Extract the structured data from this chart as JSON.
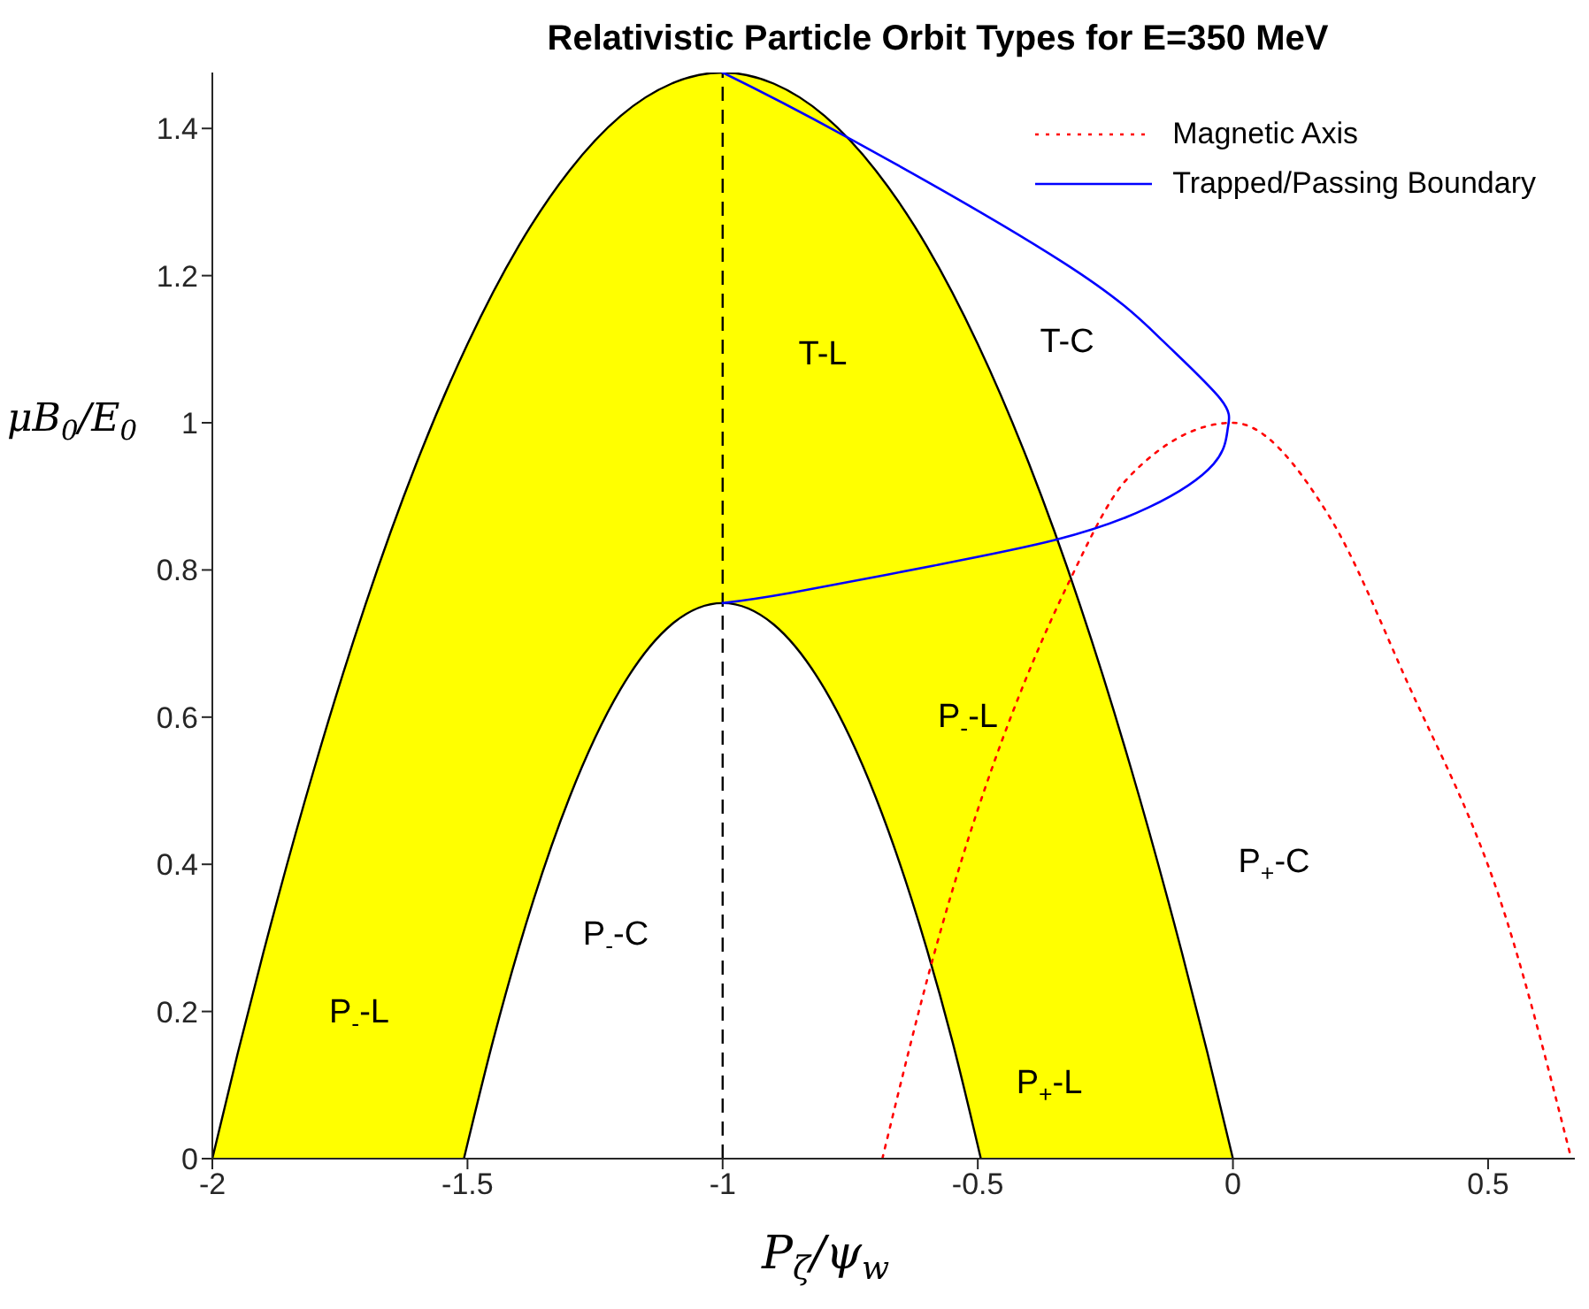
{
  "chart_data": {
    "type": "area",
    "title": "Relativistic Particle Orbit Types for E=350 MeV",
    "xlabel": "P$_{ζ}$/ψ$_{w}$",
    "ylabel": "μB$_{0}$/E$_{0}$",
    "xlim": [
      -2,
      0.67
    ],
    "xticks": [
      -2,
      -1.5,
      -1,
      -0.5,
      0,
      0.5
    ],
    "ylim": [
      0,
      1.476
    ],
    "yticks": [
      0,
      0.2,
      0.4,
      0.6,
      0.8,
      1,
      1.2,
      1.4
    ],
    "legend": "top right",
    "marker": "none",
    "series": [
      {
        "color": "#ffff00",
        "x": [
          -2,
          -1.95,
          -1.9,
          -1.8,
          -1.7,
          -1.6,
          -1.5,
          -1.4,
          -1.3,
          -1.2,
          -1.1,
          -1,
          -0.9,
          -0.8,
          -0.7,
          -0.6,
          -0.5,
          -0.4,
          -0.3,
          -0.2,
          -0.1,
          -0.05,
          0
        ],
        "values": [
          0,
          0.144,
          0.28,
          0.531,
          0.753,
          0.945,
          1.107,
          1.24,
          1.343,
          1.417,
          1.461,
          1.476,
          1.461,
          1.417,
          1.343,
          1.24,
          1.107,
          0.945,
          0.753,
          0.531,
          0.28,
          0.144,
          0
        ]
      },
      {
        "color": "#ffffff",
        "x": [
          -1.507,
          -1.45,
          -1.4,
          -1.3,
          -1.2,
          -1.1,
          -1,
          -0.9,
          -0.8,
          -0.7,
          -0.6,
          -0.55,
          -0.494
        ],
        "values": [
          0,
          0.16,
          0.285,
          0.491,
          0.638,
          0.726,
          0.755,
          0.726,
          0.638,
          0.491,
          0.285,
          0.16,
          0
        ]
      },
      {
        "type": "line",
        "name": "Magnetic Axis",
        "color": "#ff0000",
        "line_style": "dotted",
        "x": [
          -0.687,
          -0.586,
          -0.319,
          -0.207,
          0,
          0.186,
          0.34,
          0.536,
          0.663
        ],
        "values": [
          0,
          0.277,
          0.787,
          0.924,
          1.0,
          0.876,
          0.65,
          0.325,
          0
        ]
      },
      {
        "type": "line",
        "name": "Trapped/Passing Boundary",
        "color": "#0000ff",
        "line_style": "solid",
        "x": [
          -1,
          -0.761,
          -0.333,
          -0.137,
          -0.024,
          -0.01,
          -0.038,
          -0.165,
          -0.347,
          -0.586,
          -0.866,
          -1
        ],
        "values": [
          1.476,
          1.39,
          1.218,
          1.111,
          1.032,
          0.993,
          0.944,
          0.885,
          0.841,
          0.806,
          0.769,
          0.755
        ]
      }
    ],
    "ref_lines": [
      {
        "axis": "x",
        "value": -1,
        "color": "#000000",
        "line_style": "dashed"
      }
    ],
    "annotations": [
      "T-L",
      "T-C",
      "P$_{-}$-L",
      "P$_{-}$-C",
      "P$_{-}$-L",
      "P$_{+}$-C",
      "P$_{+}$-L"
    ]
  }
}
